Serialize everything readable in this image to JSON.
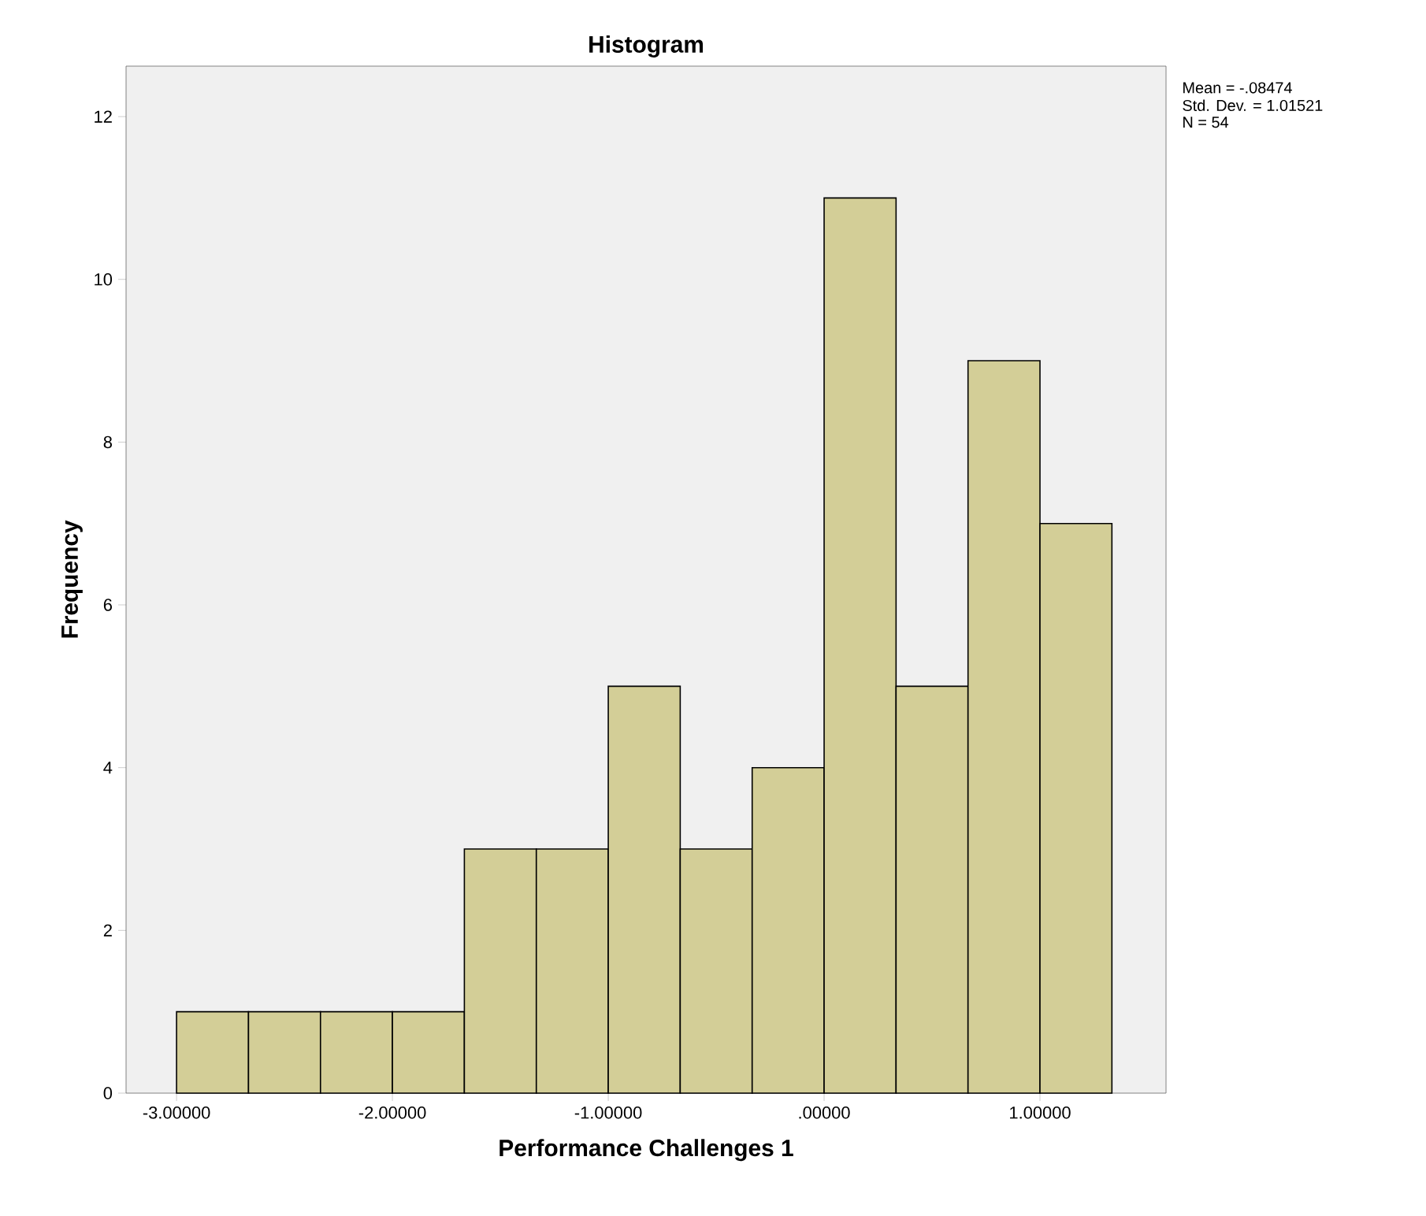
{
  "chart_data": {
    "type": "histogram",
    "title": "Histogram",
    "xlabel": "Performance Challenges 1",
    "ylabel": "Frequency",
    "bins": [
      -3,
      -2.6667,
      -2.3333,
      -2,
      -1.6667,
      -1.3333,
      -1,
      -0.6667,
      -0.3333,
      0,
      0.3333,
      0.6667,
      1,
      1.3333
    ],
    "values": [
      1,
      1,
      1,
      1,
      3,
      3,
      5,
      3,
      4,
      11,
      5,
      9,
      7
    ],
    "color": "#d3ce97",
    "xlim": [
      -3.234,
      1.584
    ],
    "ylim": [
      0,
      12.62
    ],
    "xticks": [
      {
        "value": -3,
        "label": "-3.00000"
      },
      {
        "value": -2,
        "label": "-2.00000"
      },
      {
        "value": -1,
        "label": "-1.00000"
      },
      {
        "value": 0,
        "label": ".00000"
      },
      {
        "value": 1,
        "label": "1.00000"
      }
    ],
    "yticks": [
      0,
      2,
      4,
      6,
      8,
      10,
      12
    ],
    "annotations": [
      "Mean = -.08474",
      "Std. Dev. = 1.01521",
      "N = 54"
    ]
  }
}
